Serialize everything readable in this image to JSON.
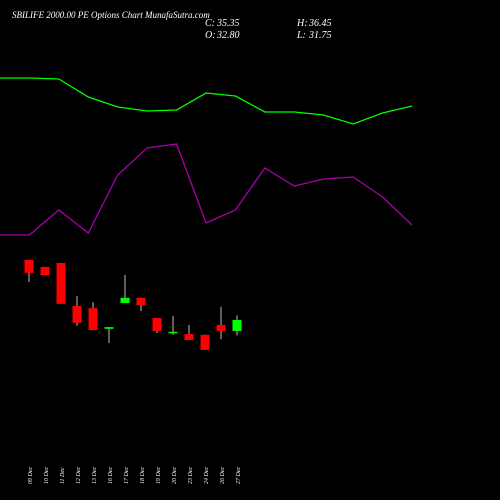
{
  "header": {
    "title": "SBILIFE 2000.00 PE Options  Chart MunafaSutra.com",
    "ohlc": [
      {
        "label": "C:",
        "value": 35.35
      },
      {
        "label": "H:",
        "value": 36.45
      },
      {
        "label": "O:",
        "value": 32.8,
        "value_label": "32.80"
      },
      {
        "label": "L:",
        "value": 31.75
      }
    ]
  },
  "chart_data": [
    {
      "type": "line",
      "categories": [
        null,
        null,
        null,
        null,
        null,
        null,
        null,
        null,
        null,
        null,
        null,
        null,
        null,
        null,
        null
      ],
      "ylim": [
        0,
        210
      ],
      "series": [
        {
          "color": "#00ff00",
          "values": [
            172,
            172,
            171,
            153,
            143,
            139,
            140,
            157,
            154,
            138,
            138,
            135,
            126,
            137,
            144
          ]
        },
        {
          "color": "#aa00aa",
          "values": [
            15,
            15,
            40,
            17,
            75,
            102,
            106,
            27,
            40,
            82,
            64,
            71,
            73,
            53,
            25
          ]
        }
      ]
    },
    {
      "type": "candlestick",
      "categories": [
        "09 Dec",
        "10 Dec",
        "11 Dec",
        "12 Dec",
        "13 Dec",
        "16 Dec",
        "17 Dec",
        "18 Dec",
        "19 Dec",
        "20 Dec",
        "23 Dec",
        "24 Dec",
        "26 Dec",
        "27 Dec"
      ],
      "open": [
        49.3,
        47.7,
        48.6,
        38.6,
        38.1,
        33.3,
        39.3,
        40.5,
        35.8,
        32.6,
        32.1,
        31.9,
        34.2,
        32.8
      ],
      "close": [
        46.3,
        45.8,
        39.1,
        34.7,
        33.0,
        33.7,
        40.5,
        38.8,
        32.8,
        32.6,
        30.7,
        28.4,
        32.8,
        35.35
      ],
      "high": [
        49.3,
        47.7,
        48.6,
        40.9,
        39.5,
        33.7,
        45.8,
        40.5,
        35.8,
        36.3,
        34.2,
        31.9,
        38.4,
        36.45
      ],
      "low": [
        44.2,
        45.8,
        39.1,
        34.0,
        33.0,
        30.0,
        39.3,
        37.4,
        32.3,
        31.9,
        30.7,
        28.4,
        30.9,
        31.75
      ],
      "up_color": "#00ff00",
      "down_color": "#ff0000",
      "ylim": [
        0,
        100
      ]
    }
  ]
}
